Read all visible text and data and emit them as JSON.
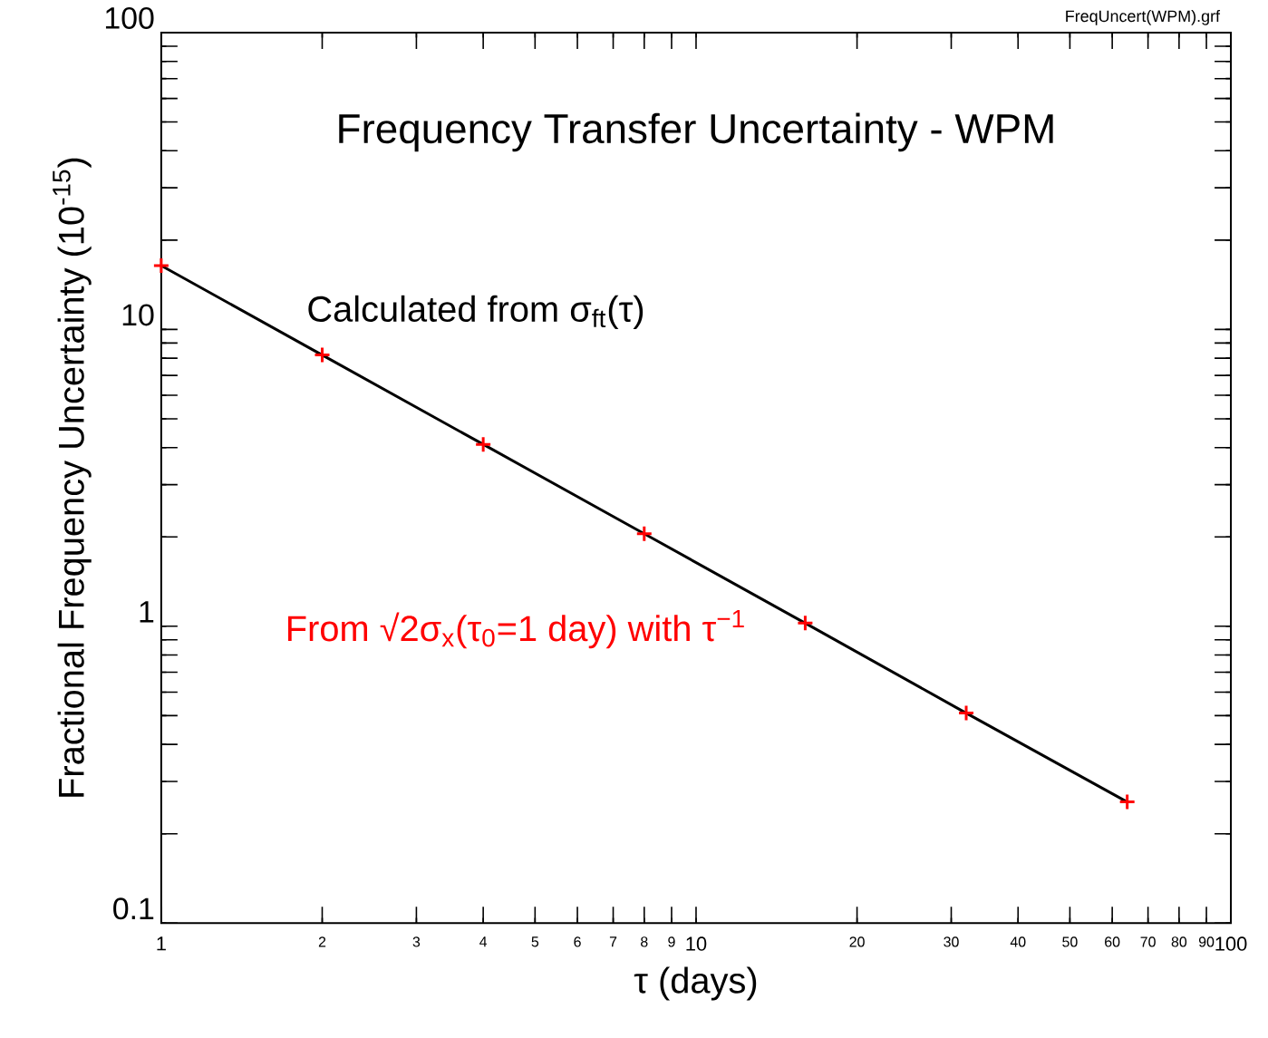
{
  "chart_data": {
    "type": "line",
    "title": "Frequency Transfer Uncertainty - WPM",
    "xlabel": "τ (days)",
    "ylabel": "Fractional Frequency Uncertainty (10$^{-15}$)",
    "annotations": [
      "FreqUncert(WPM).grf"
    ],
    "x": [
      1,
      2,
      4,
      8,
      16,
      32,
      64
    ],
    "series": [
      {
        "name": "Calculated from σ$_{ft}$(τ)",
        "color": "#000000",
        "marker": "none",
        "values": [
          16.4,
          8.2,
          4.1,
          2.05,
          1.025,
          0.51,
          0.256
        ]
      },
      {
        "name": "From √2σ$_{x}$(τ$_{0}$=1 day) with τ$^{−1}$",
        "type": "scatter",
        "color": "#ff0000",
        "marker": "cross",
        "values": [
          16.4,
          8.2,
          4.1,
          2.05,
          1.025,
          0.51,
          0.256
        ]
      }
    ],
    "log": "xy",
    "xlim": [
      1,
      100
    ],
    "ylim": [
      0.1,
      100
    ],
    "xticks": [
      1,
      2,
      3,
      4,
      5,
      6,
      7,
      8,
      9,
      10,
      20,
      30,
      40,
      50,
      60,
      70,
      80,
      90,
      100
    ],
    "yticks": [
      0.1,
      {
        "value": 0.2,
        "label": null
      },
      {
        "value": 0.3,
        "label": null
      },
      {
        "value": 0.4,
        "label": null
      },
      {
        "value": 0.5,
        "label": null
      },
      {
        "value": 0.6,
        "label": null
      },
      {
        "value": 0.7,
        "label": null
      },
      {
        "value": 0.8,
        "label": null
      },
      {
        "value": 0.9,
        "label": null
      },
      1,
      {
        "value": 2,
        "label": null
      },
      {
        "value": 3,
        "label": null
      },
      {
        "value": 4,
        "label": null
      },
      {
        "value": 5,
        "label": null
      },
      {
        "value": 6,
        "label": null
      },
      {
        "value": 7,
        "label": null
      },
      {
        "value": 8,
        "label": null
      },
      {
        "value": 9,
        "label": null
      },
      10,
      {
        "value": 20,
        "label": null
      },
      {
        "value": 30,
        "label": null
      },
      {
        "value": 40,
        "label": null
      },
      {
        "value": 50,
        "label": null
      },
      {
        "value": 60,
        "label": null
      },
      {
        "value": 70,
        "label": null
      },
      {
        "value": 80,
        "label": null
      },
      {
        "value": 90,
        "label": null
      },
      100
    ]
  }
}
